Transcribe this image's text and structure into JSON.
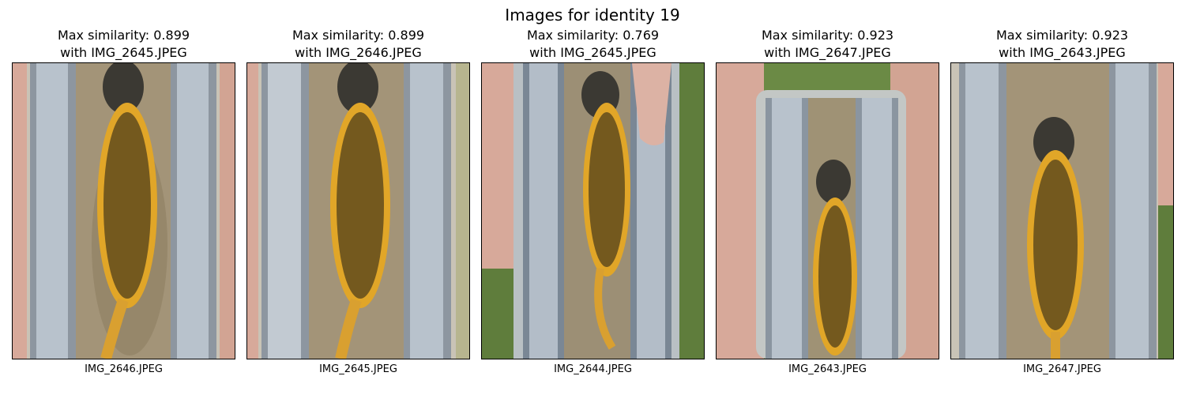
{
  "figure": {
    "title": "Images for identity 19"
  },
  "panels": [
    {
      "title_line1": "Max similarity: 0.899",
      "title_line2": "with IMG_2645.JPEG",
      "filename": "IMG_2646.JPEG"
    },
    {
      "title_line1": "Max similarity: 0.899",
      "title_line2": "with IMG_2646.JPEG",
      "filename": "IMG_2645.JPEG"
    },
    {
      "title_line1": "Max similarity: 0.769",
      "title_line2": "with IMG_2645.JPEG",
      "filename": "IMG_2644.JPEG"
    },
    {
      "title_line1": "Max similarity: 0.923",
      "title_line2": "with IMG_2647.JPEG",
      "filename": "IMG_2643.JPEG"
    },
    {
      "title_line1": "Max similarity: 0.923",
      "title_line2": "with IMG_2643.JPEG",
      "filename": "IMG_2647.JPEG"
    }
  ]
}
